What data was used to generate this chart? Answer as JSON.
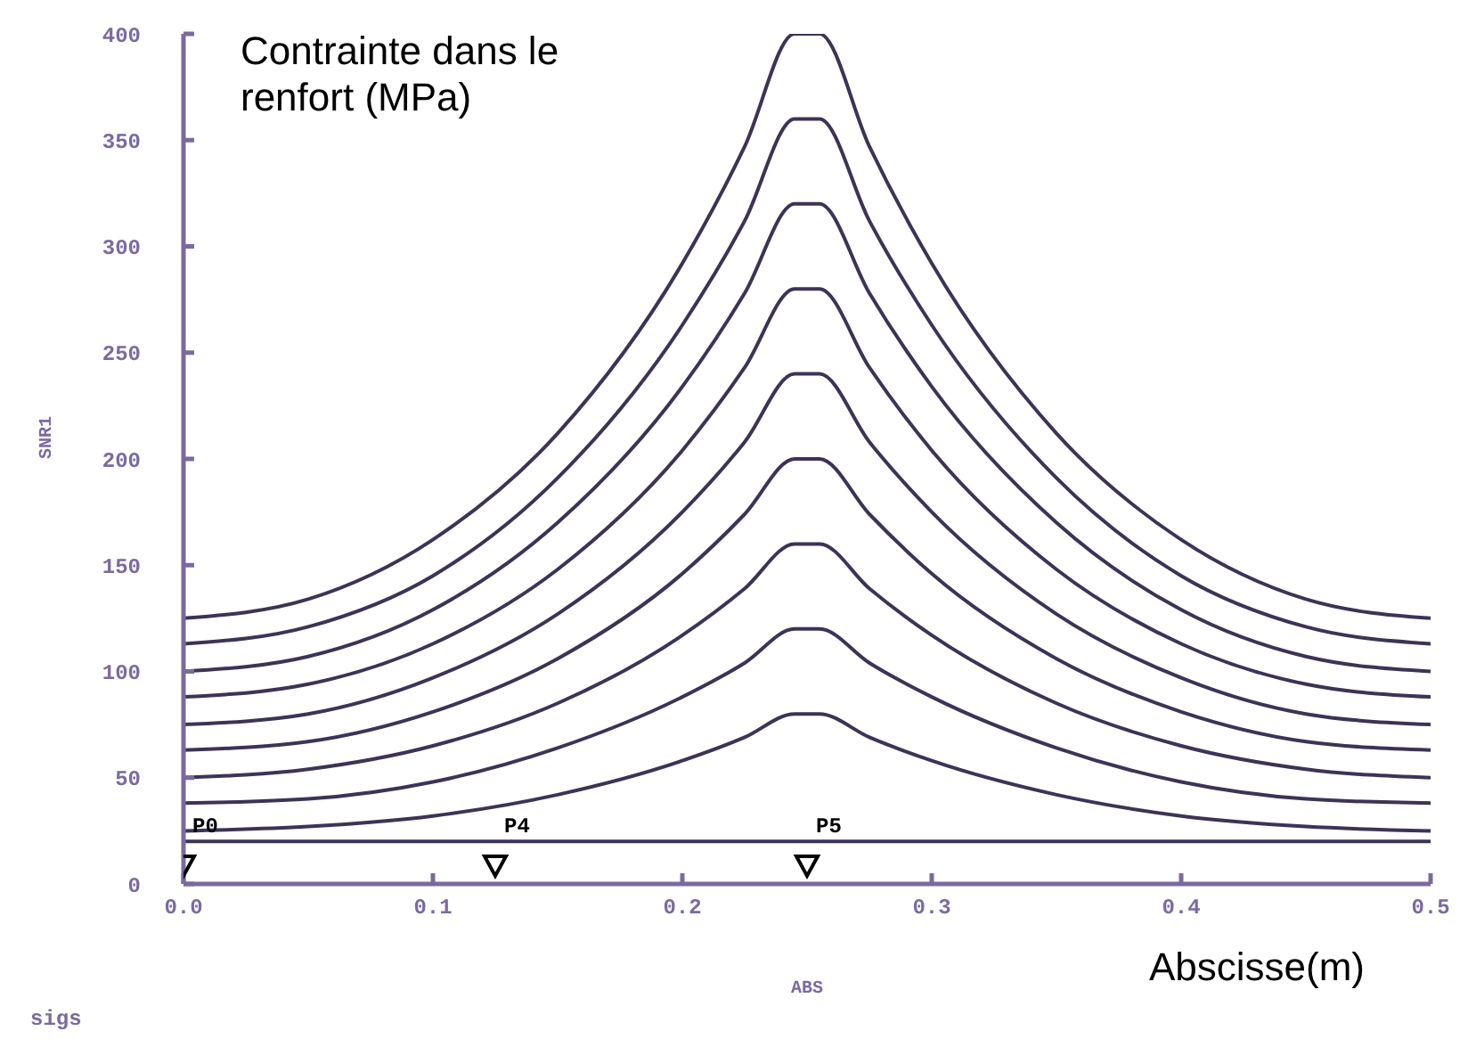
{
  "chart_data": {
    "type": "line",
    "xlabel": "ABS",
    "ylabel": "SNR1",
    "x": [
      0,
      0.05,
      0.1,
      0.15,
      0.2,
      0.225,
      0.245,
      0.255,
      0.275,
      0.3,
      0.35,
      0.4,
      0.45,
      0.5
    ],
    "series": [
      {
        "color": "#3d3355",
        "values": [
          125,
          134,
          162,
          212,
          292,
          347,
          400,
          400,
          347,
          292,
          212,
          162,
          134,
          125
        ]
      },
      {
        "color": "#3d3355",
        "values": [
          113,
          121,
          145,
          191,
          263,
          312,
          360,
          360,
          312,
          263,
          191,
          145,
          121,
          113
        ]
      },
      {
        "color": "#3d3355",
        "values": [
          100,
          107,
          129,
          170,
          234,
          278,
          320,
          320,
          278,
          234,
          170,
          129,
          107,
          100
        ]
      },
      {
        "color": "#3d3355",
        "values": [
          88,
          94,
          113,
          148,
          204,
          243,
          280,
          280,
          243,
          204,
          148,
          113,
          94,
          88
        ]
      },
      {
        "color": "#3d3355",
        "values": [
          75,
          80,
          97,
          127,
          175,
          208,
          240,
          240,
          208,
          175,
          127,
          97,
          80,
          75
        ]
      },
      {
        "color": "#3d3355",
        "values": [
          63,
          67,
          81,
          106,
          146,
          174,
          200,
          200,
          174,
          146,
          106,
          81,
          67,
          63
        ]
      },
      {
        "color": "#3d3355",
        "values": [
          50,
          54,
          65,
          85,
          117,
          139,
          160,
          160,
          139,
          117,
          85,
          65,
          54,
          50
        ]
      },
      {
        "color": "#3d3355",
        "values": [
          38,
          40,
          48,
          64,
          88,
          104,
          120,
          120,
          104,
          88,
          64,
          48,
          40,
          38
        ]
      },
      {
        "color": "#3d3355",
        "values": [
          25,
          27,
          32,
          42,
          58,
          69,
          80,
          80,
          69,
          58,
          42,
          32,
          27,
          25
        ]
      },
      {
        "color": "#3d3355",
        "x": [
          0,
          0.5
        ],
        "values": [
          20,
          20
        ]
      },
      {
        "type": "scatter",
        "marker": "triangle",
        "color": "#000000",
        "x": [
          0,
          0.125,
          0.25
        ],
        "values": [
          8,
          8,
          8
        ]
      }
    ],
    "xlim": [
      0,
      0.5
    ],
    "xticks": [
      {
        "value": 0,
        "label": "0.0"
      },
      0.1,
      0.2,
      0.3,
      0.4,
      0.5
    ],
    "ylim": [
      0,
      400
    ],
    "yticks": [
      0,
      50,
      100,
      150,
      200,
      250,
      300,
      350,
      400
    ],
    "marker": "none",
    "annotations": [
      {
        "text": "P0",
        "x": 0,
        "y": 20
      },
      {
        "text": "P4",
        "x": 0.125,
        "y": 20
      },
      {
        "text": "P5",
        "x": 0.25,
        "y": 20
      },
      "Contrainte dans le renfort (MPa)",
      "Abscisse(m)",
      "sigs"
    ]
  }
}
